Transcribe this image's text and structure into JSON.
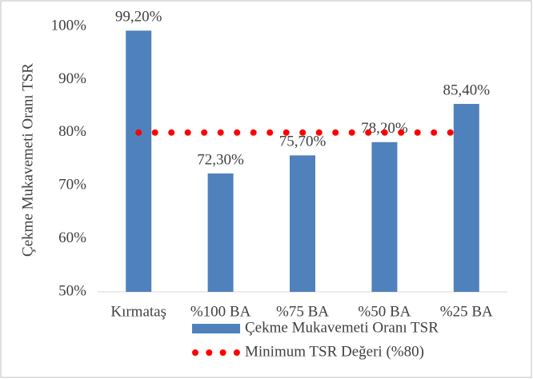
{
  "chart_data": {
    "type": "bar",
    "y_label": "Çekme Mukavemeti Oranı TSR",
    "categories": [
      "Kırmataş",
      "%100 BA",
      "%75 BA",
      "%50 BA",
      "%25 BA"
    ],
    "series": [
      {
        "name": "Çekme Mukavemeti Oranı TSR",
        "type": "bar",
        "color": "#4f81bd",
        "values": [
          99.2,
          72.3,
          75.7,
          78.2,
          85.4
        ],
        "value_labels": [
          "99,20%",
          "72,30%",
          "75,70%",
          "78,20%",
          "85,40%"
        ]
      },
      {
        "name": "Minimum TSR Değeri (%80)",
        "type": "line",
        "style": "dotted",
        "color": "#ff0000",
        "values": [
          80,
          80,
          80,
          80,
          80
        ]
      }
    ],
    "ylim": [
      50,
      100
    ],
    "yticks": [
      {
        "value": 50,
        "label": "50%"
      },
      {
        "value": 60,
        "label": "60%"
      },
      {
        "value": 70,
        "label": "70%"
      },
      {
        "value": 80,
        "label": "80%"
      },
      {
        "value": 90,
        "label": "90%"
      },
      {
        "value": 100,
        "label": "100%"
      }
    ],
    "grid": false,
    "legend": "bottom"
  }
}
